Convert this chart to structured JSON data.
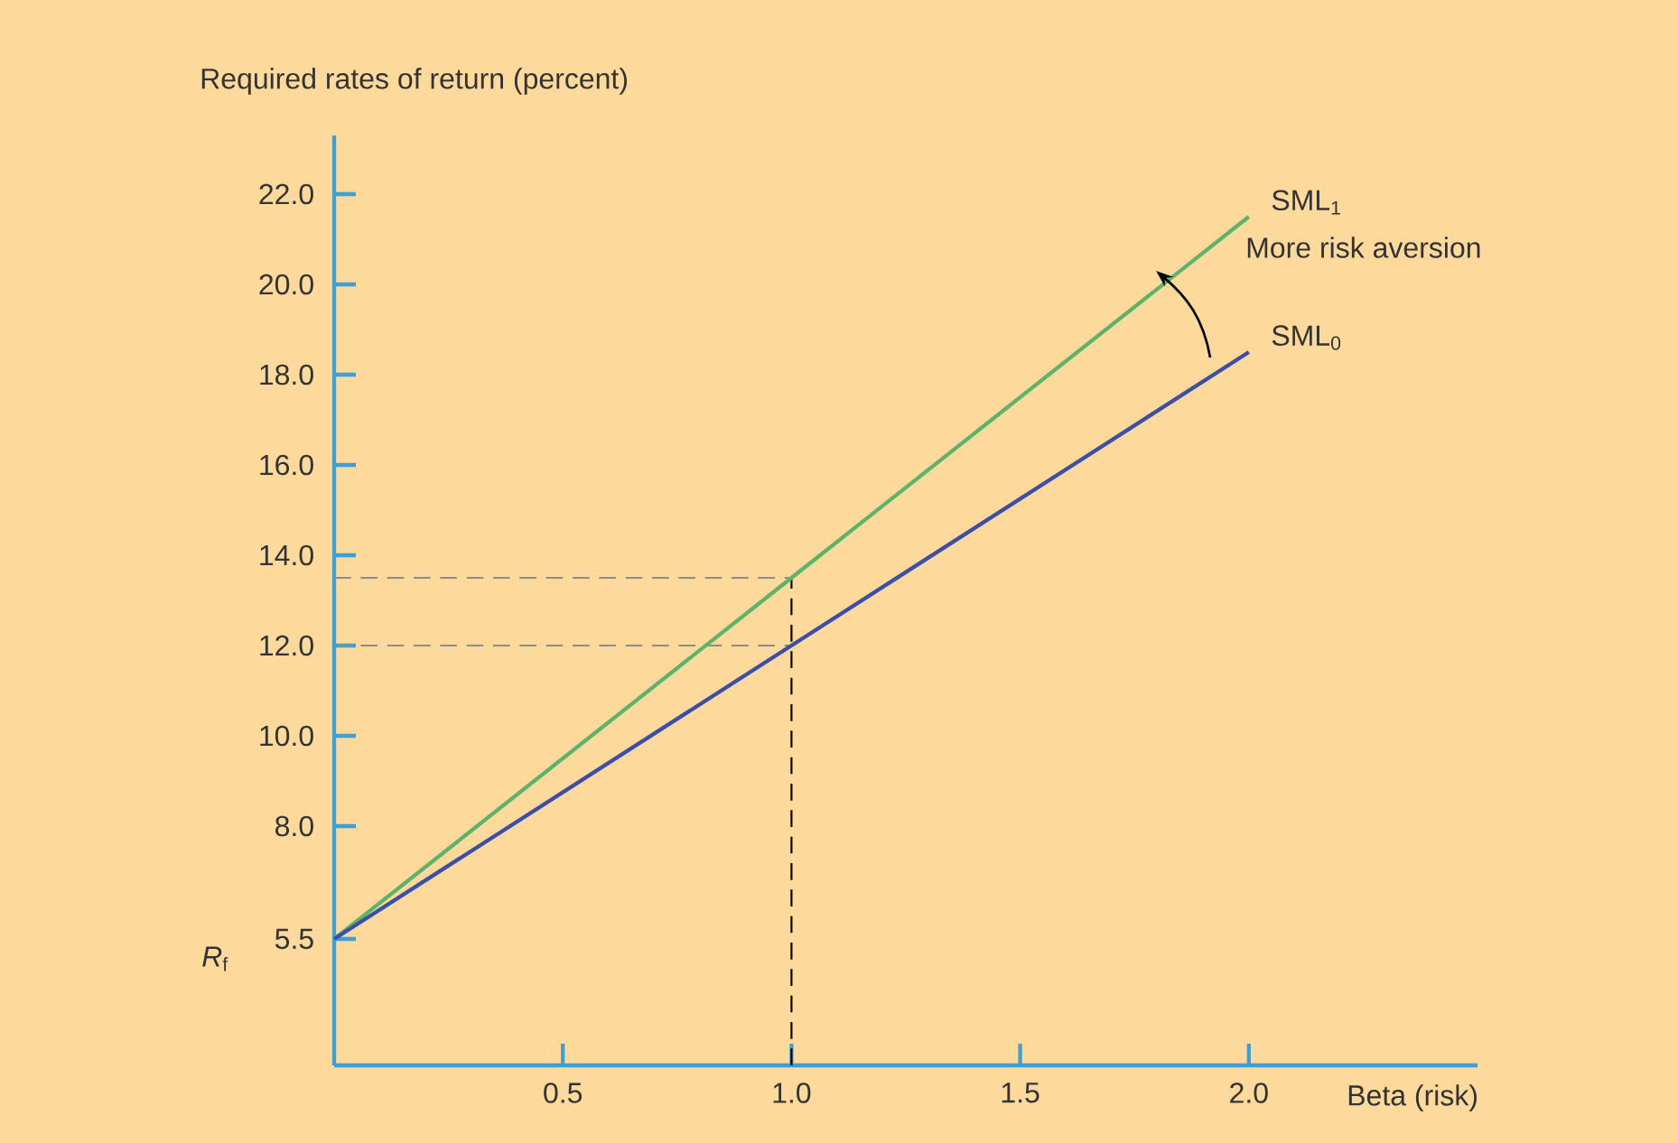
{
  "chart_data": {
    "type": "line",
    "ylabel": "Required rates of return (percent)",
    "xlabel": "Beta (risk)",
    "x": [
      0,
      1,
      2
    ],
    "series": [
      {
        "name": "SML$_{1}$",
        "color": "#5cb46a",
        "values": [
          5.5,
          13.5,
          21.5
        ]
      },
      {
        "name": "SML$_{0}$",
        "color": "#3c4fa8",
        "values": [
          5.5,
          12.0,
          18.5
        ]
      }
    ],
    "xlim": [
      0,
      2.5
    ],
    "ylim": [
      2.7,
      23.3
    ],
    "xticks": [
      {
        "value": 0.5,
        "label": "0.5"
      },
      {
        "value": 1,
        "label": "1.0"
      },
      {
        "value": 1.5,
        "label": "1.5"
      },
      {
        "value": 2,
        "label": "2.0"
      }
    ],
    "yticks": [
      5.5,
      {
        "value": 8,
        "label": "8.0"
      },
      {
        "value": 10,
        "label": "10.0"
      },
      {
        "value": 12,
        "label": "12.0"
      },
      {
        "value": 14,
        "label": "14.0"
      },
      {
        "value": 16,
        "label": "16.0"
      },
      {
        "value": 18,
        "label": "18.0"
      },
      {
        "value": 20,
        "label": "20.0"
      },
      {
        "value": 22,
        "label": "22.0"
      }
    ],
    "ref_lines": [
      {
        "axis": "y",
        "value": 13.5,
        "color": "#8c8c8c",
        "line_style": "dashed"
      },
      {
        "axis": "y",
        "value": 12.0,
        "color": "#8c8c8c",
        "line_style": "dashed"
      },
      {
        "axis": "x",
        "value": 1,
        "color": "#000000",
        "line_style": "dashed"
      }
    ],
    "annotations": [
      "More risk aversion",
      "*R*$_{f}$"
    ],
    "legend": false,
    "grid": false,
    "marker": "none",
    "line_style": "solid"
  }
}
